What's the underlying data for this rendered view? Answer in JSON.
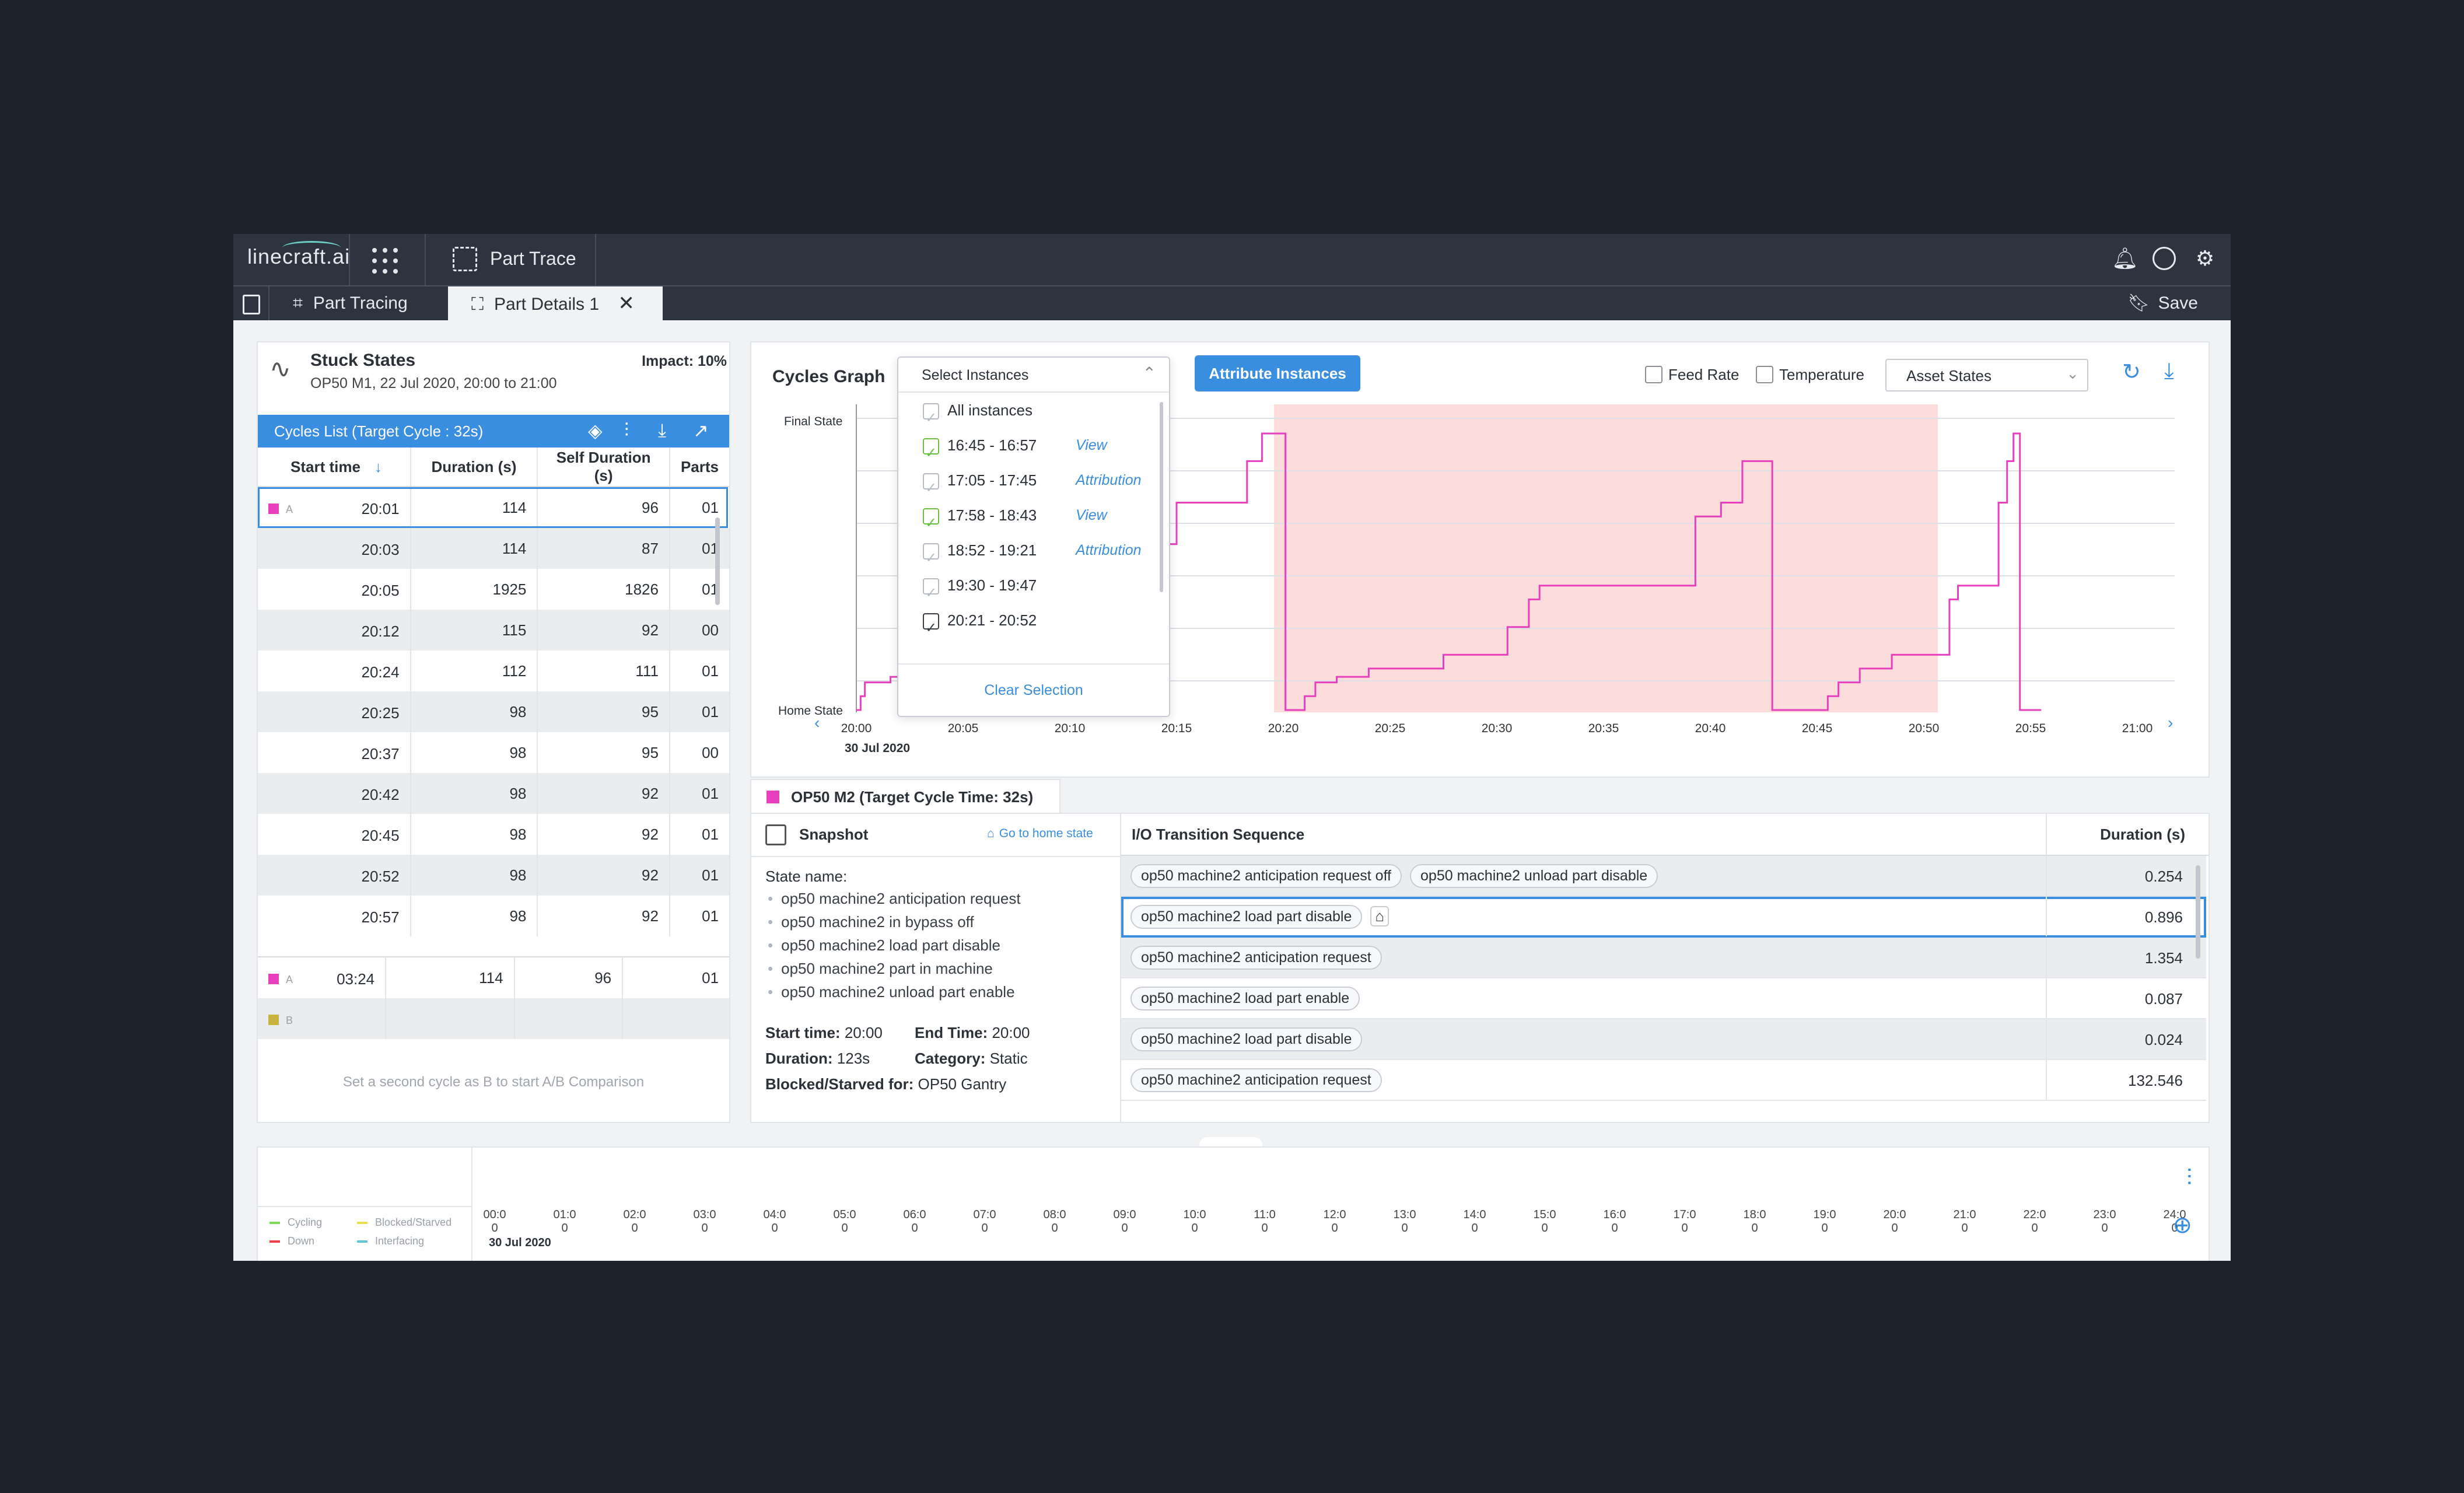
{
  "app": {
    "logo": "linecraft.ai",
    "module": "Part Trace"
  },
  "tabs": [
    {
      "label": "Part Tracing"
    },
    {
      "label": "Part Details 1"
    }
  ],
  "toolbar": {
    "save_label": "Save"
  },
  "stuck": {
    "title": "Stuck States",
    "subtitle": "OP50 M1, 22 Jul 2020, 20:00 to 21:00",
    "impact": "Impact: 10%"
  },
  "cycles": {
    "header": "Cycles List (Target Cycle : 32s)",
    "columns": [
      "Start time",
      "Duration (s)",
      "Self Duration (s)",
      "Parts"
    ],
    "rows": [
      {
        "tag": "A",
        "start": "20:01",
        "duration": "114",
        "self": "96",
        "parts": "01"
      },
      {
        "tag": "",
        "start": "20:03",
        "duration": "114",
        "self": "87",
        "parts": "01"
      },
      {
        "tag": "",
        "start": "20:05",
        "duration": "1925",
        "self": "1826",
        "parts": "01"
      },
      {
        "tag": "",
        "start": "20:12",
        "duration": "115",
        "self": "92",
        "parts": "00"
      },
      {
        "tag": "",
        "start": "20:24",
        "duration": "112",
        "self": "111",
        "parts": "01"
      },
      {
        "tag": "",
        "start": "20:25",
        "duration": "98",
        "self": "95",
        "parts": "01"
      },
      {
        "tag": "",
        "start": "20:37",
        "duration": "98",
        "self": "95",
        "parts": "00"
      },
      {
        "tag": "",
        "start": "20:42",
        "duration": "98",
        "self": "92",
        "parts": "01"
      },
      {
        "tag": "",
        "start": "20:45",
        "duration": "98",
        "self": "92",
        "parts": "01"
      },
      {
        "tag": "",
        "start": "20:52",
        "duration": "98",
        "self": "92",
        "parts": "01"
      },
      {
        "tag": "",
        "start": "20:57",
        "duration": "98",
        "self": "92",
        "parts": "01"
      }
    ],
    "compare": [
      {
        "tag": "A",
        "start": "03:24",
        "duration": "114",
        "self": "96",
        "parts": "01"
      },
      {
        "tag": "B",
        "start": "",
        "duration": "",
        "self": "",
        "parts": ""
      }
    ],
    "compare_hint": "Set a second cycle as B to start A/B Comparison"
  },
  "graph": {
    "title": "Cycles Graph",
    "select_placeholder": "Select Instances",
    "attribute_button": "Attribute Instances",
    "feed_rate": "Feed Rate",
    "temperature": "Temperature",
    "asset_states": "Asset States",
    "y_top": "Final State",
    "y_bottom": "Home State",
    "date": "30 Jul 2020",
    "x_ticks": [
      "20:00",
      "20:05",
      "20:10",
      "20:15",
      "20:20",
      "20:25",
      "20:30",
      "20:35",
      "20:40",
      "20:45",
      "20:50",
      "20:55",
      "21:00"
    ],
    "dropdown": {
      "items": [
        {
          "label": "All instances",
          "state": "grey",
          "attr": ""
        },
        {
          "label": "16:45 - 16:57",
          "state": "green",
          "attr": "View Attribution"
        },
        {
          "label": "17:05 - 17:45",
          "state": "grey",
          "attr": ""
        },
        {
          "label": "17:58 - 18:43",
          "state": "green",
          "attr": "View Attribution"
        },
        {
          "label": "18:52 - 19:21",
          "state": "grey",
          "attr": ""
        },
        {
          "label": "19:30 - 19:47",
          "state": "grey",
          "attr": ""
        },
        {
          "label": "20:21 - 20:52",
          "state": "dark",
          "attr": ""
        }
      ],
      "clear": "Clear Selection"
    },
    "colors": {
      "line": "#e83fbf",
      "highlight": "#fddcdc",
      "accent": "#3a8ee0"
    }
  },
  "machine": {
    "label": "OP50 M2 (Target Cycle Time: 32s)",
    "color": "#e83fbf"
  },
  "snapshot": {
    "title": "Snapshot",
    "home_link": "Go to home state",
    "state_label": "State name:",
    "states": [
      "op50 machine2 anticipation request",
      "op50 machine2 in bypass off",
      "op50 machine2 load part disable",
      "op50 machine2 part in machine",
      "op50 machine2 unload part enable"
    ],
    "start_label": "Start time:",
    "start": "20:00",
    "end_label": "End Time:",
    "end": "20:00",
    "duration_label": "Duration:",
    "duration": "123s",
    "category_label": "Category:",
    "category": "Static",
    "blocked_label": "Blocked/Starved for:",
    "blocked": "OP50 Gantry"
  },
  "io": {
    "col_seq": "I/O Transition Sequence",
    "col_dur": "Duration (s)",
    "rows": [
      {
        "chips": [
          "op50 machine2 anticipation request off",
          "op50 machine2 unload part disable"
        ],
        "duration": "0.254",
        "home": false
      },
      {
        "chips": [
          "op50 machine2 load part disable"
        ],
        "duration": "0.896",
        "home": true
      },
      {
        "chips": [
          "op50 machine2 anticipation request"
        ],
        "duration": "1.354",
        "home": false
      },
      {
        "chips": [
          "op50 machine2 load part enable"
        ],
        "duration": "0.087",
        "home": false
      },
      {
        "chips": [
          "op50 machine2 load part disable"
        ],
        "duration": "0.024",
        "home": false
      },
      {
        "chips": [
          "op50 machine2 anticipation request"
        ],
        "duration": "132.546",
        "home": false
      }
    ]
  },
  "timeline": {
    "legend": [
      {
        "label": "Cycling",
        "color": "#7ed957"
      },
      {
        "label": "Blocked/Starved",
        "color": "#e6e04a"
      },
      {
        "label": "Down",
        "color": "#f0424a"
      },
      {
        "label": "Interfacing",
        "color": "#5ec8d8"
      }
    ],
    "date": "30 Jul 2020",
    "ticks": [
      "00:0",
      "01:0",
      "02:0",
      "03:0",
      "04:0",
      "05:0",
      "06:0",
      "07:0",
      "08:0",
      "09:0",
      "10:0",
      "11:0",
      "12:0",
      "13:0",
      "14:0",
      "15:0",
      "16:0",
      "17:0",
      "18:0",
      "19:0",
      "20:0",
      "21:0",
      "22:0",
      "23:0",
      "24:0"
    ],
    "sub": "0"
  }
}
